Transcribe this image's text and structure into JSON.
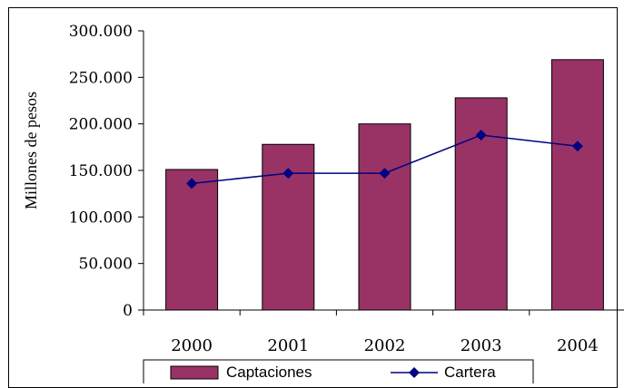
{
  "chart_data": {
    "type": "bar",
    "title": "",
    "xlabel": "",
    "ylabel": "Millones de pesos",
    "categories": [
      "2000",
      "2001",
      "2002",
      "2003",
      "2004"
    ],
    "series": [
      {
        "name": "Captaciones",
        "kind": "bar",
        "color": "#993366",
        "values": [
          151000,
          178000,
          200000,
          228000,
          269000
        ]
      },
      {
        "name": "Cartera",
        "kind": "line",
        "color": "#000080",
        "marker": "diamond",
        "values": [
          136000,
          147000,
          147000,
          188000,
          176000
        ]
      }
    ],
    "ylim": [
      0,
      300000
    ],
    "yticks": [
      0,
      50000,
      100000,
      150000,
      200000,
      250000,
      300000
    ],
    "ytick_labels": [
      "0",
      "50.000",
      "100.000",
      "150.000",
      "200.000",
      "250.000",
      "300.000"
    ],
    "grid": false,
    "legend": "bottom"
  }
}
